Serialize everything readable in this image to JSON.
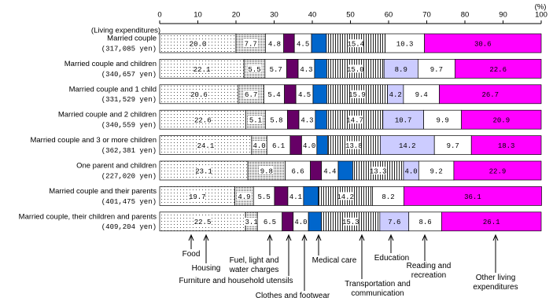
{
  "chart_data": {
    "type": "stacked-bar-horizontal",
    "unit_label": "(%)",
    "category_header": "(Living expenditures)",
    "categories": [
      "Married couple",
      "Married couple and children",
      "Married couple and 1 child",
      "Married couple and 2 children",
      "Married couple and 3 or more children",
      "One parent and children",
      "Married couple and their parents",
      "Married couple, their children and parents"
    ],
    "category_notes": [
      "(317,085 yen)",
      "(340,657 yen)",
      "(331,529 yen)",
      "(340,559 yen)",
      "(362,381 yen)",
      "(227,020 yen)",
      "(401,475 yen)",
      "(409,204 yen)"
    ],
    "xlim": [
      0,
      100
    ],
    "xticks": [
      0,
      10,
      20,
      30,
      40,
      50,
      60,
      70,
      80,
      90,
      100
    ],
    "series": [
      {
        "name": "Food",
        "color": "#ffffff",
        "pattern": "sparse-dots",
        "values": [
          20.0,
          22.1,
          20.6,
          22.6,
          24.1,
          23.1,
          19.7,
          22.5
        ],
        "value_labels": [
          "20.0",
          "22.1",
          "20.6",
          "22.6",
          "24.1",
          "23.1",
          "19.7",
          "22.5"
        ]
      },
      {
        "name": "Housing",
        "color": "#ffffff",
        "pattern": "dense-dots",
        "values": [
          7.7,
          5.5,
          6.7,
          5.1,
          4.0,
          9.8,
          4.9,
          3.1
        ],
        "value_labels": [
          "7.7",
          "5.5",
          "6.7",
          "5.1",
          "4.0",
          "9.8",
          "4.9",
          "3.1"
        ]
      },
      {
        "name": "Fuel, light and water charges",
        "color": "#ffffff",
        "values": [
          4.8,
          5.7,
          5.4,
          5.8,
          6.1,
          6.6,
          5.5,
          6.5
        ],
        "value_labels": [
          "4.8",
          "5.7",
          "5.4",
          "5.8",
          "6.1",
          "6.6",
          "5.5",
          "6.5"
        ]
      },
      {
        "name": "Furniture and household utensils",
        "color": "#660066",
        "values": [
          2.8,
          3.0,
          3.0,
          3.0,
          3.0,
          2.9,
          3.5,
          2.9
        ],
        "value_labels": [
          null,
          null,
          null,
          null,
          null,
          null,
          null,
          null
        ]
      },
      {
        "name": "Clothes and footwear",
        "color": "#ffffff",
        "values": [
          4.5,
          4.3,
          4.5,
          4.3,
          4.0,
          4.4,
          4.1,
          4.0
        ],
        "value_labels": [
          "4.5",
          "4.3",
          "4.5",
          "4.3",
          "4.0",
          "4.4",
          "4.1",
          "4.0"
        ]
      },
      {
        "name": "Medical care",
        "color": "#0066cc",
        "values": [
          3.9,
          3.2,
          3.6,
          3.0,
          2.8,
          3.8,
          3.9,
          3.4
        ],
        "value_labels": [
          null,
          null,
          null,
          null,
          null,
          null,
          null,
          null
        ]
      },
      {
        "name": "Transportation and communication",
        "color": "#ffffff",
        "pattern": "vertical-stripes",
        "values": [
          15.4,
          15.0,
          15.9,
          14.7,
          13.8,
          13.3,
          14.2,
          15.3
        ],
        "value_labels": [
          "15.4",
          "15.0",
          "15.9",
          "14.7",
          "13.8",
          "13.3",
          "14.2",
          "15.3"
        ]
      },
      {
        "name": "Education",
        "color": "#ccccff",
        "values": [
          0,
          8.9,
          4.2,
          10.7,
          14.2,
          4.0,
          0,
          7.6
        ],
        "value_labels": [
          null,
          "8.9",
          "4.2",
          "10.7",
          "14.2",
          "4.0",
          null,
          "7.6"
        ]
      },
      {
        "name": "Reading and recreation",
        "color": "#ffffff",
        "values": [
          10.3,
          9.7,
          9.4,
          9.9,
          9.7,
          9.2,
          8.2,
          8.6
        ],
        "value_labels": [
          "10.3",
          "9.7",
          "9.4",
          "9.9",
          "9.7",
          "9.2",
          "8.2",
          "8.6"
        ]
      },
      {
        "name": "Other living expenditures",
        "color": "#ff00ff",
        "values": [
          30.6,
          22.6,
          26.7,
          20.9,
          18.3,
          22.9,
          36.1,
          26.1
        ],
        "value_labels": [
          "30.6",
          "22.6",
          "26.7",
          "20.9",
          "18.3",
          "22.9",
          "36.1",
          "26.1"
        ]
      }
    ]
  }
}
